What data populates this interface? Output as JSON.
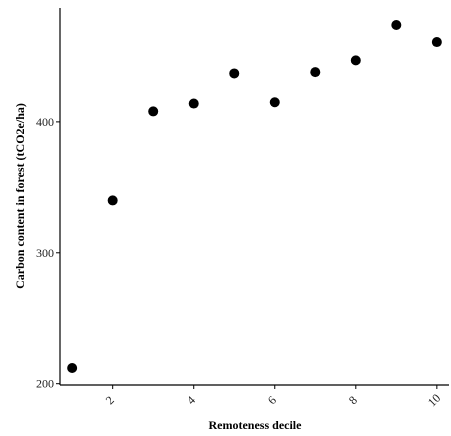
{
  "chart_data": {
    "type": "scatter",
    "title": "",
    "xlabel": "Remoteness decile",
    "ylabel": "Carbon content in forest (tCO2e/ha)",
    "x": [
      1,
      2,
      3,
      4,
      5,
      6,
      7,
      8,
      9,
      10
    ],
    "y": [
      212,
      340,
      408,
      414,
      437,
      415,
      438,
      447,
      474,
      461
    ],
    "xlim": [
      0.7,
      10.3
    ],
    "ylim": [
      199,
      487
    ],
    "x_ticks": [
      2,
      4,
      6,
      8,
      10
    ],
    "y_ticks": [
      200,
      300,
      400
    ],
    "grid": false,
    "point_color": "#000000"
  }
}
